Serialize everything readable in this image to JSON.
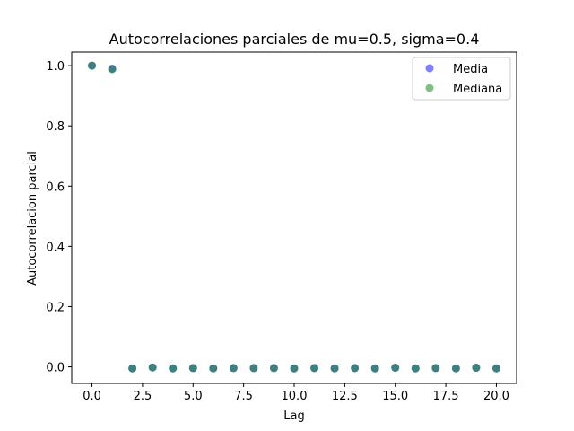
{
  "chart_data": {
    "type": "scatter",
    "title": "Autocorrelaciones parciales de mu=0.5, sigma=0.4",
    "xlabel": "Lag",
    "ylabel": "Autocorrelacion parcial",
    "xlim": [
      -1.0,
      21.0
    ],
    "ylim": [
      -0.055,
      1.045
    ],
    "x_ticks": [
      0.0,
      2.5,
      5.0,
      7.5,
      10.0,
      12.5,
      15.0,
      17.5,
      20.0
    ],
    "x_tick_labels": [
      "0.0",
      "2.5",
      "5.0",
      "7.5",
      "10.0",
      "12.5",
      "15.0",
      "17.5",
      "20.0"
    ],
    "y_ticks": [
      0.0,
      0.2,
      0.4,
      0.6,
      0.8,
      1.0
    ],
    "y_tick_labels": [
      "0.0",
      "0.2",
      "0.4",
      "0.6",
      "0.8",
      "1.0"
    ],
    "grid": false,
    "legend_position": "top-right",
    "x": [
      0,
      1,
      2,
      3,
      4,
      5,
      6,
      7,
      8,
      9,
      10,
      11,
      12,
      13,
      14,
      15,
      16,
      17,
      18,
      19,
      20
    ],
    "series": [
      {
        "name": "Media",
        "color": "#0000ff",
        "values": [
          1.0,
          0.99,
          -0.005,
          -0.002,
          -0.005,
          -0.004,
          -0.005,
          -0.004,
          -0.004,
          -0.004,
          -0.005,
          -0.004,
          -0.005,
          -0.004,
          -0.005,
          -0.003,
          -0.005,
          -0.004,
          -0.005,
          -0.003,
          -0.005
        ]
      },
      {
        "name": "Mediana",
        "color": "#008000",
        "values": [
          1.0,
          0.988,
          -0.005,
          -0.002,
          -0.005,
          -0.004,
          -0.005,
          -0.004,
          -0.004,
          -0.004,
          -0.005,
          -0.004,
          -0.005,
          -0.004,
          -0.005,
          -0.003,
          -0.005,
          -0.004,
          -0.005,
          -0.003,
          -0.005
        ]
      }
    ]
  }
}
